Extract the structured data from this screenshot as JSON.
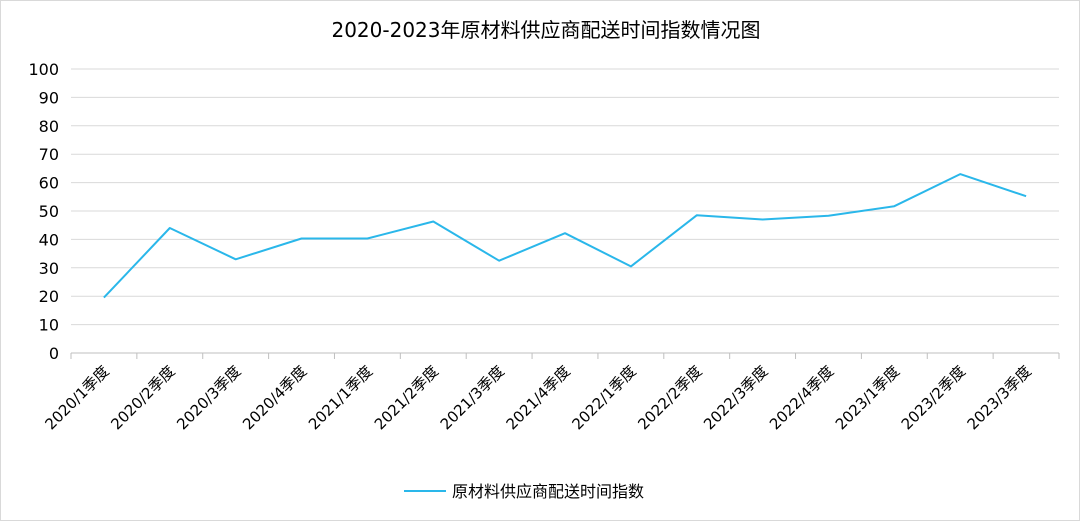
{
  "chart_data": {
    "type": "line",
    "title": "2020-2023年原材料供应商配送时间指数情况图",
    "xlabel": "",
    "ylabel": "",
    "categories": [
      "2020/1季度",
      "2020/2季度",
      "2020/3季度",
      "2020/4季度",
      "2021/1季度",
      "2021/2季度",
      "2021/3季度",
      "2021/4季度",
      "2022/1季度",
      "2022/2季度",
      "2022/3季度",
      "2022/4季度",
      "2023/1季度",
      "2023/2季度",
      "2023/3季度"
    ],
    "series": [
      {
        "name": "原材料供应商配送时间指数",
        "color": "#2ab7ea",
        "values": [
          19.5,
          44,
          33,
          40.3,
          40.3,
          46.3,
          32.5,
          42.2,
          30.5,
          48.5,
          47,
          48.3,
          51.7,
          63,
          55.2
        ]
      }
    ],
    "ylim": [
      0,
      100
    ],
    "yticks": [
      0,
      10,
      20,
      30,
      40,
      50,
      60,
      70,
      80,
      90,
      100
    ],
    "grid": true,
    "legend_position": "bottom"
  }
}
